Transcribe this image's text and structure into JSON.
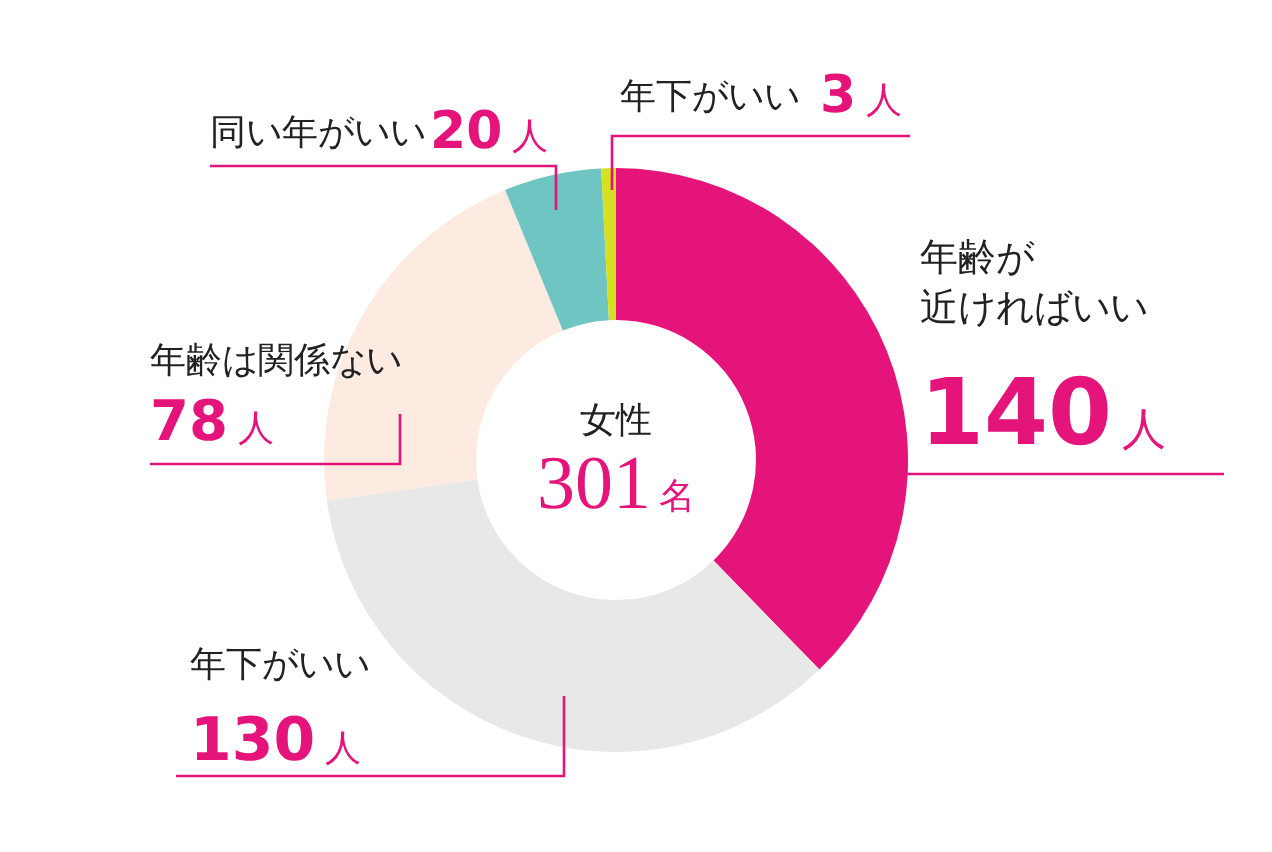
{
  "chart_data": {
    "type": "donut",
    "title": "女性",
    "annotations": [
      "301名"
    ],
    "categories": [
      "年齢が近ければいい",
      "年下がいい",
      "年齢は関係ない",
      "同い年がいい",
      "年下がいい"
    ],
    "values": [
      140,
      130,
      78,
      20,
      3
    ],
    "colors": [
      "#e4147a",
      "#e8e8e8",
      "#fdeae0",
      "#6fc5c2",
      "#d4e021"
    ],
    "value_labels": [
      "140人",
      "130人",
      "78人",
      "20人",
      "3人"
    ]
  }
}
